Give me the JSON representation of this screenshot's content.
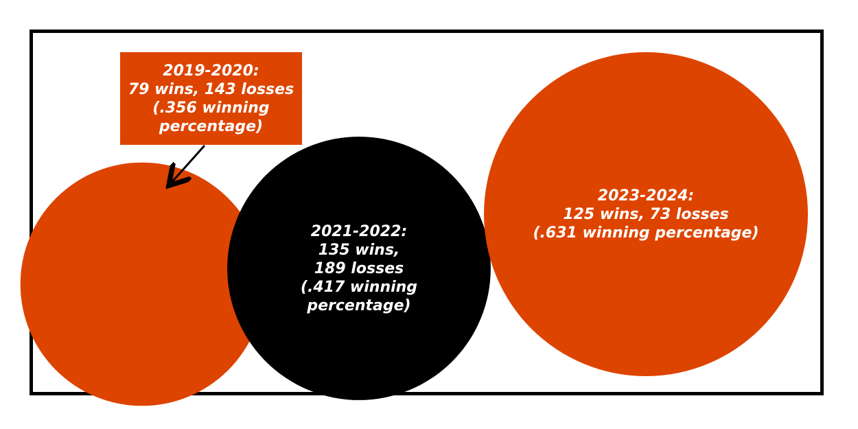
{
  "chart_data": {
    "type": "bubble",
    "title": "",
    "bubbles": [
      {
        "season": "2019-2020",
        "wins": 79,
        "losses": 143,
        "winning_percentage": 0.356,
        "lines": [
          "2019-2020:",
          "79 wins, 143 losses",
          "(.356 winning",
          "percentage)"
        ],
        "color": "#dd4400",
        "label_mode": "callout"
      },
      {
        "season": "2021-2022",
        "wins": 135,
        "losses": 189,
        "winning_percentage": 0.417,
        "lines": [
          "2021-2022:",
          "135 wins,",
          "189 losses",
          "(.417 winning",
          "percentage)"
        ],
        "color": "#000000",
        "label_mode": "inside"
      },
      {
        "season": "2023-2024",
        "wins": 125,
        "losses": 73,
        "winning_percentage": 0.631,
        "lines": [
          "2023-2024:",
          "125 wins, 73 losses",
          "(.631 winning percentage)"
        ],
        "color": "#dd4400",
        "label_mode": "inside"
      }
    ]
  },
  "colors": {
    "accent": "#dd4400",
    "dark": "#000000",
    "text": "#ffffff",
    "frame": "#000000"
  }
}
